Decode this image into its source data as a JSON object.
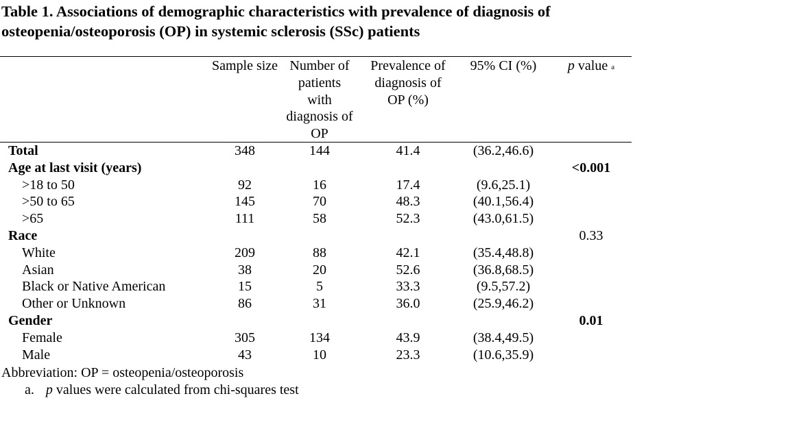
{
  "title": "Table 1. Associations of demographic characteristics with prevalence of diagnosis of osteopenia/osteoporosis (OP) in systemic sclerosis (SSc) patients",
  "headers": {
    "sample_size": "Sample size",
    "num_patients": "Number of patients with diagnosis of OP",
    "prevalence": "Prevalence of diagnosis of OP (%)",
    "ci": "95% CI (%)",
    "p_italic": "p",
    "p_rest": " value",
    "p_sup": "a"
  },
  "rows": [
    {
      "label": "Total",
      "level": "main",
      "n": "348",
      "op": "144",
      "prev": "41.4",
      "ci": "(36.2,46.6)",
      "p": "",
      "p_bold": false
    },
    {
      "label": "Age at last visit (years)",
      "level": "main",
      "n": "",
      "op": "",
      "prev": "",
      "ci": "",
      "p": "<0.001",
      "p_bold": true
    },
    {
      "label": ">18 to 50",
      "level": "sub",
      "n": "92",
      "op": "16",
      "prev": "17.4",
      "ci": "(9.6,25.1)",
      "p": "",
      "p_bold": false
    },
    {
      "label": ">50 to 65",
      "level": "sub",
      "n": "145",
      "op": "70",
      "prev": "48.3",
      "ci": "(40.1,56.4)",
      "p": "",
      "p_bold": false
    },
    {
      "label": ">65",
      "level": "sub",
      "n": "111",
      "op": "58",
      "prev": "52.3",
      "ci": "(43.0,61.5)",
      "p": "",
      "p_bold": false
    },
    {
      "label": "Race",
      "level": "main",
      "n": "",
      "op": "",
      "prev": "",
      "ci": "",
      "p": "0.33",
      "p_bold": false
    },
    {
      "label": "White",
      "level": "sub",
      "n": "209",
      "op": "88",
      "prev": "42.1",
      "ci": "(35.4,48.8)",
      "p": "",
      "p_bold": false
    },
    {
      "label": "Asian",
      "level": "sub",
      "n": "38",
      "op": "20",
      "prev": "52.6",
      "ci": "(36.8,68.5)",
      "p": "",
      "p_bold": false
    },
    {
      "label": "Black or Native American",
      "level": "sub",
      "n": "15",
      "op": "5",
      "prev": "33.3",
      "ci": "(9.5,57.2)",
      "p": "",
      "p_bold": false
    },
    {
      "label": "Other or Unknown",
      "level": "sub",
      "n": "86",
      "op": "31",
      "prev": "36.0",
      "ci": "(25.9,46.2)",
      "p": "",
      "p_bold": false
    },
    {
      "label": "Gender",
      "level": "main",
      "n": "",
      "op": "",
      "prev": "",
      "ci": "",
      "p": "0.01",
      "p_bold": true
    },
    {
      "label": "Female",
      "level": "sub",
      "n": "305",
      "op": "134",
      "prev": "43.9",
      "ci": "(38.4,49.5)",
      "p": "",
      "p_bold": false
    },
    {
      "label": "Male",
      "level": "sub",
      "n": "43",
      "op": "10",
      "prev": "23.3",
      "ci": "(10.6,35.9)",
      "p": "",
      "p_bold": false
    }
  ],
  "footnotes": {
    "abbreviation": "Abbreviation: OP = osteopenia/osteoporosis",
    "a_marker": "a.",
    "a_italic": "p",
    "a_rest": " values were calculated from chi-squares test"
  }
}
